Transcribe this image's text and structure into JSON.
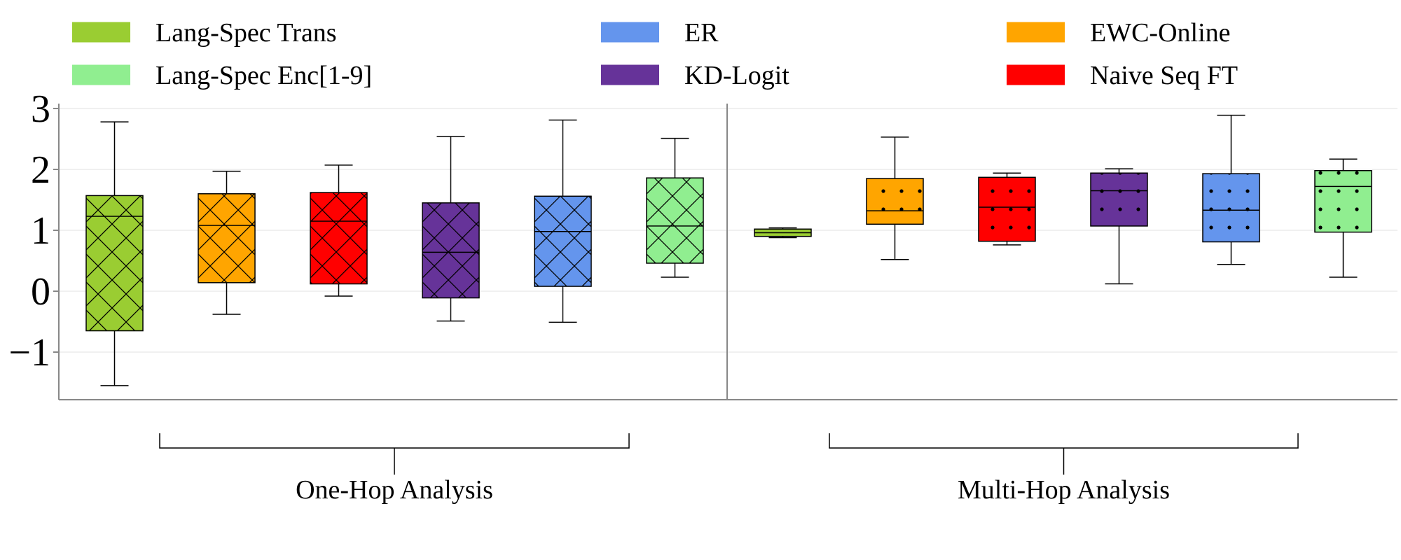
{
  "chart_data": {
    "type": "boxplot",
    "title": "",
    "xlabel": "",
    "ylabel": "",
    "ylim": [
      -1.75,
      3.1
    ],
    "yticks": [
      3,
      2,
      1,
      0,
      -1
    ],
    "ytick_labels": [
      "3",
      "2",
      "1",
      "0",
      "−1"
    ],
    "grid": "horizontal",
    "legend": {
      "placement": "top",
      "entries": [
        {
          "name": "Lang-Spec Trans",
          "color": "#9ACD32"
        },
        {
          "name": "ER",
          "color": "#6495ED"
        },
        {
          "name": "EWC-Online",
          "color": "#FFA500"
        },
        {
          "name": "Lang-Spec Enc[1-9]",
          "color": "#90EE90"
        },
        {
          "name": "KD-Logit",
          "color": "#663399"
        },
        {
          "name": "Naive Seq FT",
          "color": "#FF0000"
        }
      ]
    },
    "groups": [
      {
        "label": "One-Hop Analysis",
        "pattern": "crosshatch",
        "boxes": [
          {
            "method": "Lang-Spec Trans",
            "color": "#9ACD32",
            "whisker_low": -1.55,
            "q1": -0.65,
            "median": 1.23,
            "q3": 1.57,
            "whisker_high": 2.78
          },
          {
            "method": "EWC-Online",
            "color": "#FFA500",
            "whisker_low": -0.38,
            "q1": 0.14,
            "median": 1.08,
            "q3": 1.6,
            "whisker_high": 1.97
          },
          {
            "method": "Naive Seq FT",
            "color": "#FF0000",
            "whisker_low": -0.08,
            "q1": 0.12,
            "median": 1.15,
            "q3": 1.62,
            "whisker_high": 2.07
          },
          {
            "method": "KD-Logit",
            "color": "#663399",
            "whisker_low": -0.49,
            "q1": -0.11,
            "median": 0.64,
            "q3": 1.45,
            "whisker_high": 2.54
          },
          {
            "method": "ER",
            "color": "#6495ED",
            "whisker_low": -0.51,
            "q1": 0.08,
            "median": 0.98,
            "q3": 1.56,
            "whisker_high": 2.81
          },
          {
            "method": "Lang-Spec Enc[1-9]",
            "color": "#90EE90",
            "whisker_low": 0.23,
            "q1": 0.46,
            "median": 1.07,
            "q3": 1.86,
            "whisker_high": 2.51
          }
        ]
      },
      {
        "label": "Multi-Hop Analysis",
        "pattern": "dots",
        "boxes": [
          {
            "method": "Lang-Spec Trans",
            "color": "#9ACD32",
            "whisker_low": 0.88,
            "q1": 0.9,
            "median": 0.96,
            "q3": 1.02,
            "whisker_high": 1.04
          },
          {
            "method": "EWC-Online",
            "color": "#FFA500",
            "whisker_low": 0.52,
            "q1": 1.1,
            "median": 1.32,
            "q3": 1.85,
            "whisker_high": 2.53
          },
          {
            "method": "Naive Seq FT",
            "color": "#FF0000",
            "whisker_low": 0.76,
            "q1": 0.82,
            "median": 1.38,
            "q3": 1.87,
            "whisker_high": 1.94
          },
          {
            "method": "KD-Logit",
            "color": "#663399",
            "whisker_low": 0.12,
            "q1": 1.07,
            "median": 1.65,
            "q3": 1.94,
            "whisker_high": 2.01
          },
          {
            "method": "ER",
            "color": "#6495ED",
            "whisker_low": 0.44,
            "q1": 0.81,
            "median": 1.33,
            "q3": 1.93,
            "whisker_high": 2.89
          },
          {
            "method": "Lang-Spec Enc[1-9]",
            "color": "#90EE90",
            "whisker_low": 0.23,
            "q1": 0.97,
            "median": 1.72,
            "q3": 1.98,
            "whisker_high": 2.17
          }
        ]
      }
    ]
  }
}
